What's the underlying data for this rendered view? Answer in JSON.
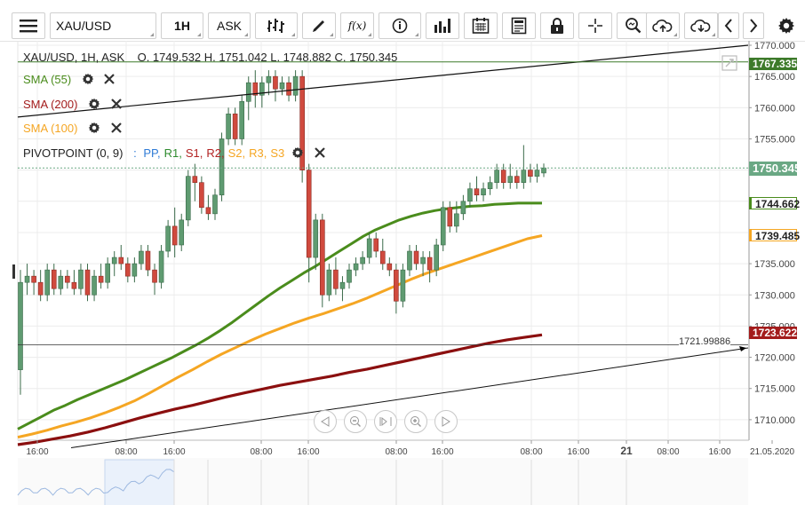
{
  "toolbar": {
    "symbol": "XAU/USD",
    "timeframe": "1H",
    "price_side": "ASK",
    "fx_label": "f(x)",
    "icons": [
      "menu-icon",
      "bar-style-icon",
      "draw-icon",
      "function-icon",
      "info-icon",
      "volume-icon",
      "calendar-icon",
      "news-icon",
      "lock-icon",
      "crosshair-icon",
      "zoom-icon",
      "cloud-upload-icon",
      "cloud-download-icon",
      "chevron-left-icon",
      "chevron-right-icon",
      "gear-icon"
    ]
  },
  "legend": {
    "ohlc": "XAU/USD, 1H, ASK    O. 1749.532 H. 1751.042 L. 1748.882 C. 1750.345",
    "sma55": "SMA (55)",
    "sma200": "SMA (200)",
    "sma100": "SMA (100)",
    "pivot_name": "PIVOTPOINT (0, 9)",
    "pivot_sep": ":",
    "pivot_items": [
      {
        "label": "PP,",
        "color": "#2f7bd6"
      },
      {
        "label": "R1,",
        "color": "#2e8b2e"
      },
      {
        "label": "S1,",
        "color": "#b22222"
      },
      {
        "label": "R2,",
        "color": "#b22222"
      },
      {
        "label": "S2,",
        "color": "#f5a623"
      },
      {
        "label": "R3,",
        "color": "#f5a623"
      },
      {
        "label": "S3",
        "color": "#f5a623"
      }
    ]
  },
  "price_tags": {
    "top": "1767.335",
    "current": "1750.345",
    "sma55": "1744.662",
    "sma100": "1739.485",
    "sma200": "1723.622",
    "hline": "1721.99886"
  },
  "colors": {
    "up": "#5f9b71",
    "down": "#d04a3e",
    "sma55": "#4a8c1c",
    "sma100": "#f5a623",
    "sma200": "#8b0f0f",
    "current_tag": "#6aa884",
    "top_tag": "#3d7a2a"
  },
  "chart_data": {
    "type": "candlestick",
    "ylim": [
      1706,
      1770
    ],
    "y_ticks": [
      "1770.000",
      "1765.000",
      "1760.000",
      "1755.000",
      "1750.000",
      "1745.000",
      "1740.000",
      "1735.000",
      "1730.000",
      "1725.000",
      "1720.000",
      "1715.000",
      "1710.000"
    ],
    "x_ticks": [
      "16:00",
      "08:00",
      "16:00",
      "08:00",
      "16:00",
      "08:00",
      "16:00",
      "08:00",
      "16:00",
      "21",
      "08:00",
      "16:00",
      "21.05.2020"
    ],
    "candles": [
      {
        "o": 1718,
        "h": 1734,
        "l": 1714,
        "c": 1732
      },
      {
        "o": 1732,
        "h": 1735,
        "l": 1730,
        "c": 1733
      },
      {
        "o": 1733,
        "h": 1734,
        "l": 1730,
        "c": 1732
      },
      {
        "o": 1732,
        "h": 1734,
        "l": 1729,
        "c": 1730
      },
      {
        "o": 1730,
        "h": 1735,
        "l": 1729,
        "c": 1734
      },
      {
        "o": 1734,
        "h": 1735,
        "l": 1730,
        "c": 1731
      },
      {
        "o": 1731,
        "h": 1734,
        "l": 1730,
        "c": 1733
      },
      {
        "o": 1733,
        "h": 1734,
        "l": 1731,
        "c": 1732
      },
      {
        "o": 1732,
        "h": 1734,
        "l": 1730,
        "c": 1731
      },
      {
        "o": 1731,
        "h": 1735,
        "l": 1730,
        "c": 1734
      },
      {
        "o": 1734,
        "h": 1735,
        "l": 1729,
        "c": 1730
      },
      {
        "o": 1730,
        "h": 1734,
        "l": 1729,
        "c": 1733
      },
      {
        "o": 1733,
        "h": 1735,
        "l": 1731,
        "c": 1732
      },
      {
        "o": 1732,
        "h": 1736,
        "l": 1731,
        "c": 1735
      },
      {
        "o": 1735,
        "h": 1737,
        "l": 1733,
        "c": 1736
      },
      {
        "o": 1736,
        "h": 1738,
        "l": 1734,
        "c": 1735
      },
      {
        "o": 1735,
        "h": 1736,
        "l": 1732,
        "c": 1733
      },
      {
        "o": 1733,
        "h": 1736,
        "l": 1732,
        "c": 1735
      },
      {
        "o": 1735,
        "h": 1738,
        "l": 1734,
        "c": 1737
      },
      {
        "o": 1737,
        "h": 1738,
        "l": 1733,
        "c": 1734
      },
      {
        "o": 1734,
        "h": 1735,
        "l": 1730,
        "c": 1732
      },
      {
        "o": 1732,
        "h": 1738,
        "l": 1731,
        "c": 1737
      },
      {
        "o": 1737,
        "h": 1742,
        "l": 1736,
        "c": 1741
      },
      {
        "o": 1741,
        "h": 1744,
        "l": 1736,
        "c": 1738
      },
      {
        "o": 1738,
        "h": 1743,
        "l": 1737,
        "c": 1742
      },
      {
        "o": 1742,
        "h": 1750,
        "l": 1741,
        "c": 1749
      },
      {
        "o": 1749,
        "h": 1751,
        "l": 1745,
        "c": 1748
      },
      {
        "o": 1748,
        "h": 1749,
        "l": 1743,
        "c": 1744
      },
      {
        "o": 1744,
        "h": 1746,
        "l": 1742,
        "c": 1743
      },
      {
        "o": 1743,
        "h": 1747,
        "l": 1742,
        "c": 1746
      },
      {
        "o": 1746,
        "h": 1756,
        "l": 1745,
        "c": 1755
      },
      {
        "o": 1755,
        "h": 1760,
        "l": 1754,
        "c": 1759
      },
      {
        "o": 1759,
        "h": 1760,
        "l": 1754,
        "c": 1755
      },
      {
        "o": 1755,
        "h": 1762,
        "l": 1754,
        "c": 1761
      },
      {
        "o": 1761,
        "h": 1765,
        "l": 1758,
        "c": 1764
      },
      {
        "o": 1764,
        "h": 1766,
        "l": 1760,
        "c": 1762
      },
      {
        "o": 1762,
        "h": 1765,
        "l": 1760,
        "c": 1764
      },
      {
        "o": 1764,
        "h": 1766,
        "l": 1762,
        "c": 1765
      },
      {
        "o": 1765,
        "h": 1766,
        "l": 1761,
        "c": 1763
      },
      {
        "o": 1763,
        "h": 1765,
        "l": 1762,
        "c": 1764
      },
      {
        "o": 1764,
        "h": 1765,
        "l": 1761,
        "c": 1762
      },
      {
        "o": 1762,
        "h": 1766,
        "l": 1761,
        "c": 1765
      },
      {
        "o": 1765,
        "h": 1766,
        "l": 1748,
        "c": 1750
      },
      {
        "o": 1750,
        "h": 1751,
        "l": 1732,
        "c": 1736
      },
      {
        "o": 1736,
        "h": 1743,
        "l": 1734,
        "c": 1742
      },
      {
        "o": 1742,
        "h": 1743,
        "l": 1728,
        "c": 1730
      },
      {
        "o": 1730,
        "h": 1735,
        "l": 1729,
        "c": 1734
      },
      {
        "o": 1734,
        "h": 1736,
        "l": 1730,
        "c": 1731
      },
      {
        "o": 1731,
        "h": 1733,
        "l": 1729,
        "c": 1732
      },
      {
        "o": 1732,
        "h": 1735,
        "l": 1731,
        "c": 1734
      },
      {
        "o": 1734,
        "h": 1736,
        "l": 1733,
        "c": 1735
      },
      {
        "o": 1735,
        "h": 1737,
        "l": 1734,
        "c": 1736
      },
      {
        "o": 1736,
        "h": 1740,
        "l": 1735,
        "c": 1739
      },
      {
        "o": 1739,
        "h": 1740,
        "l": 1736,
        "c": 1737
      },
      {
        "o": 1737,
        "h": 1739,
        "l": 1734,
        "c": 1735
      },
      {
        "o": 1735,
        "h": 1736,
        "l": 1733,
        "c": 1734
      },
      {
        "o": 1734,
        "h": 1735,
        "l": 1727,
        "c": 1729
      },
      {
        "o": 1729,
        "h": 1735,
        "l": 1728,
        "c": 1734
      },
      {
        "o": 1734,
        "h": 1738,
        "l": 1733,
        "c": 1737
      },
      {
        "o": 1737,
        "h": 1738,
        "l": 1734,
        "c": 1735
      },
      {
        "o": 1735,
        "h": 1737,
        "l": 1733,
        "c": 1736
      },
      {
        "o": 1736,
        "h": 1737,
        "l": 1732,
        "c": 1734
      },
      {
        "o": 1734,
        "h": 1739,
        "l": 1733,
        "c": 1738
      },
      {
        "o": 1738,
        "h": 1745,
        "l": 1737,
        "c": 1744
      },
      {
        "o": 1744,
        "h": 1745,
        "l": 1740,
        "c": 1741
      },
      {
        "o": 1741,
        "h": 1745,
        "l": 1740,
        "c": 1743
      },
      {
        "o": 1743,
        "h": 1746,
        "l": 1742,
        "c": 1745
      },
      {
        "o": 1745,
        "h": 1748,
        "l": 1744,
        "c": 1747
      },
      {
        "o": 1747,
        "h": 1749,
        "l": 1745,
        "c": 1746
      },
      {
        "o": 1746,
        "h": 1748,
        "l": 1745,
        "c": 1747
      },
      {
        "o": 1747,
        "h": 1749,
        "l": 1746,
        "c": 1748
      },
      {
        "o": 1748,
        "h": 1751,
        "l": 1747,
        "c": 1750
      },
      {
        "o": 1750,
        "h": 1751,
        "l": 1747,
        "c": 1748
      },
      {
        "o": 1748,
        "h": 1751,
        "l": 1747,
        "c": 1749
      },
      {
        "o": 1749,
        "h": 1750,
        "l": 1747,
        "c": 1748
      },
      {
        "o": 1748,
        "h": 1754,
        "l": 1747,
        "c": 1750
      },
      {
        "o": 1750,
        "h": 1751,
        "l": 1748,
        "c": 1749
      },
      {
        "o": 1749,
        "h": 1751,
        "l": 1748,
        "c": 1750
      },
      {
        "o": 1749.532,
        "h": 1751.042,
        "l": 1748.882,
        "c": 1750.345
      }
    ],
    "sma55": [
      1708.5,
      1709.5,
      1710.5,
      1711.5,
      1712.3,
      1713.2,
      1714.0,
      1714.8,
      1715.6,
      1716.4,
      1717.3,
      1718.2,
      1719.1,
      1720.0,
      1721.0,
      1722.0,
      1723.1,
      1724.3,
      1725.6,
      1727.0,
      1728.4,
      1729.8,
      1731.1,
      1732.3,
      1733.5,
      1734.6,
      1735.8,
      1737.0,
      1738.2,
      1739.4,
      1740.4,
      1741.2,
      1742.0,
      1742.6,
      1743.1,
      1743.5,
      1743.8,
      1744.0,
      1744.2,
      1744.3,
      1744.5,
      1744.6,
      1744.7,
      1744.7,
      1744.7
    ],
    "sma100": [
      1707.2,
      1707.7,
      1708.3,
      1709.0,
      1709.6,
      1710.3,
      1711.1,
      1712.0,
      1713.0,
      1714.2,
      1715.5,
      1716.8,
      1718.0,
      1719.3,
      1720.5,
      1721.6,
      1722.7,
      1723.7,
      1724.6,
      1725.5,
      1726.3,
      1727.0,
      1727.8,
      1728.6,
      1729.5,
      1730.5,
      1731.5,
      1732.5,
      1733.4,
      1734.2,
      1735.0,
      1735.8,
      1736.6,
      1737.4,
      1738.2,
      1739.0,
      1739.5
    ],
    "sma200": [
      1706.0,
      1706.4,
      1706.9,
      1707.4,
      1708.0,
      1708.7,
      1709.5,
      1710.3,
      1711.0,
      1711.7,
      1712.3,
      1713.0,
      1713.7,
      1714.3,
      1714.9,
      1715.5,
      1716.0,
      1716.5,
      1717.0,
      1717.6,
      1718.1,
      1718.7,
      1719.3,
      1719.9,
      1720.5,
      1721.1,
      1721.7,
      1722.3,
      1722.8,
      1723.2,
      1723.6
    ],
    "hline": 1721.99886,
    "trend_upper": [
      [
        1758.5
      ],
      [
        1770.0
      ]
    ],
    "trend_lower": [
      [
        1705.5
      ],
      [
        1721.5
      ]
    ],
    "top_line": 1767.335,
    "current_line": 1750.345
  }
}
